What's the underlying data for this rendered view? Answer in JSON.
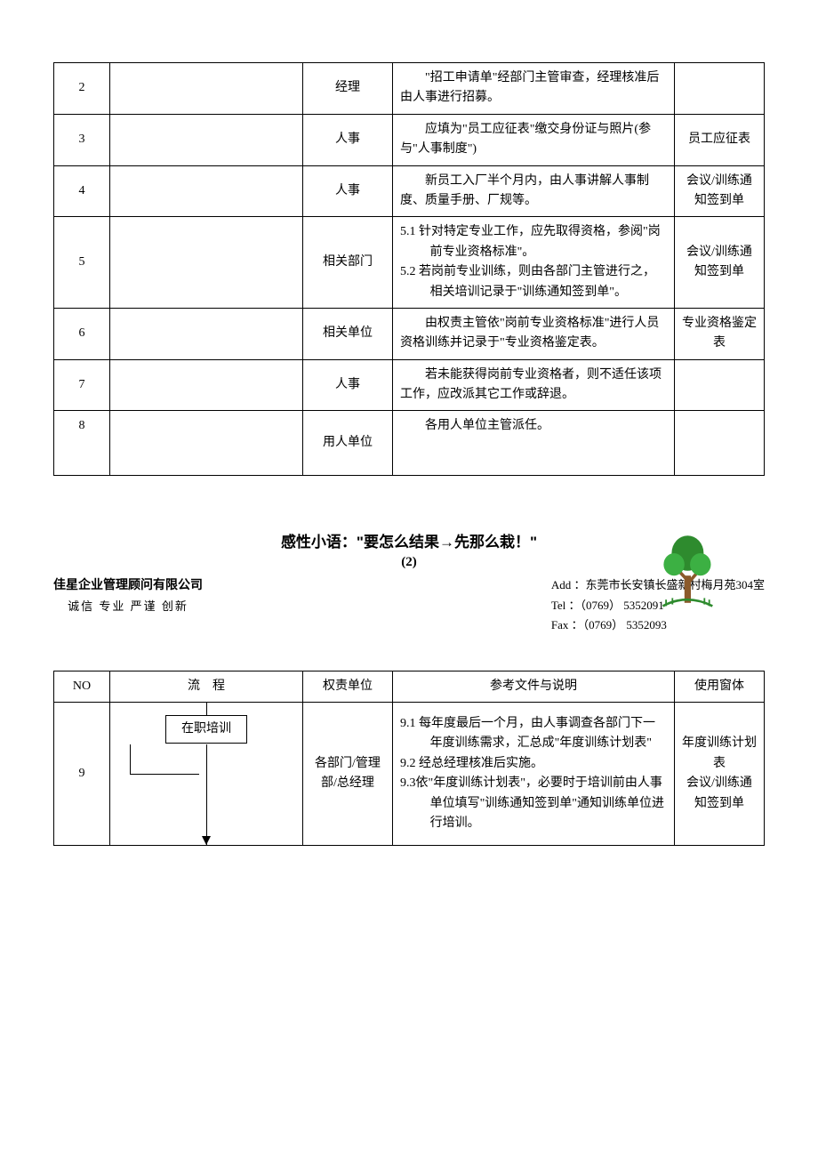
{
  "table1": {
    "rows": [
      {
        "no": "2",
        "dept": "经理",
        "desc_lines": [
          "　　\"招工申请单\"经部门主管审查，经理核准后由人事进行招募。"
        ],
        "form": ""
      },
      {
        "no": "3",
        "dept": "人事",
        "desc_lines": [
          "　　应填为\"员工应征表\"缴交身份证与照片(参与\"人事制度\")"
        ],
        "form": "员工应征表"
      },
      {
        "no": "4",
        "dept": "人事",
        "desc_lines": [
          "　　新员工入厂半个月内，由人事讲解人事制度、质量手册、厂规等。"
        ],
        "form": "会议/训练通知签到单"
      },
      {
        "no": "5",
        "dept": "相关部门",
        "desc_lines": [
          "5.1 针对特定专业工作，应先取得资格，参阅\"岗前专业资格标准\"。",
          "5.2 若岗前专业训练，则由各部门主管进行之，相关培训记录于\"训练通知签到单\"。"
        ],
        "form": "会议/训练通知签到单"
      },
      {
        "no": "6",
        "dept": "相关单位",
        "desc_lines": [
          "　　由权责主管依\"岗前专业资格标准\"进行人员资格训练并记录于\"专业资格鉴定表。"
        ],
        "form": "专业资格鉴定表"
      },
      {
        "no": "7",
        "dept": "人事",
        "desc_lines": [
          "　　若未能获得岗前专业资格者，则不适任该项工作，应改派其它工作或辞退。"
        ],
        "form": ""
      },
      {
        "no": "8",
        "dept": "用人单位",
        "desc_lines": [
          "　　各用人单位主管派任。"
        ],
        "form": ""
      }
    ]
  },
  "motto": "感性小语：\"要怎么结果→先那么栽！\"",
  "page_number": "(2)",
  "company": {
    "name": "佳星企业管理顾问有限公司",
    "slogan": "诚信  专业  严谨  创新",
    "address": "Add ：东莞市长安镇长盛新村梅月苑304室",
    "tel": "Tel ：（0769）  5352091",
    "fax": "Fax ：（0769）  5352093"
  },
  "table2": {
    "headers": {
      "no": "NO",
      "flow": "流　程",
      "dept": "权责单位",
      "desc": "参考文件与说明",
      "form": "使用窗体"
    },
    "row": {
      "no": "9",
      "flow_box": "在职培训",
      "dept": "各部门/管理部/总经理",
      "desc_lines": [
        "9.1 每年度最后一个月，由人事调查各部门下一年度训练需求，汇总成\"年度训练计划表\"",
        "9.2 经总经理核准后实施。",
        "9.3依\"年度训练计划表\"，必要时于培训前由人事单位填写\"训练通知签到单\"通知训练单位进行培训。"
      ],
      "form": "年度训练计划表\n会议/训练通知签到单"
    }
  },
  "colors": {
    "tree_trunk": "#8b5a2b",
    "tree_leaf1": "#2e8b2e",
    "tree_leaf2": "#3cb043"
  }
}
